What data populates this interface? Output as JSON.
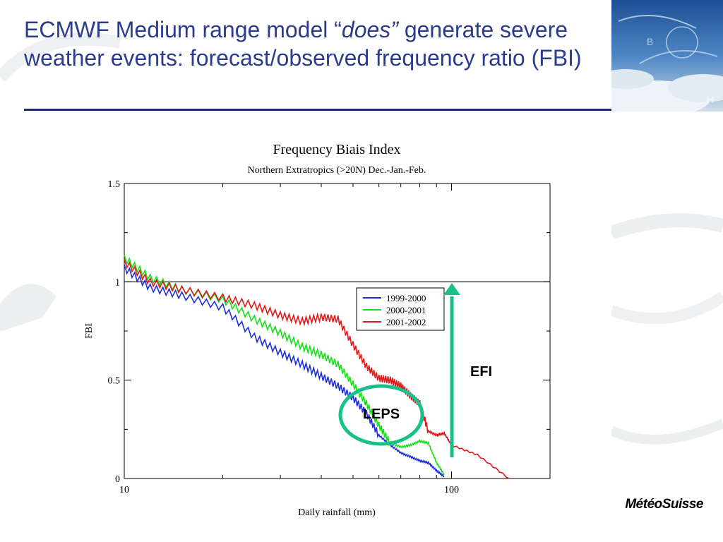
{
  "slide": {
    "title_part1": "ECMWF Medium range model “",
    "title_emph": "does”",
    "title_part2": " generate severe weather events: forecast/observed frequency ratio (FBI)",
    "logo_text": "MétéoSuisse"
  },
  "chart_data": {
    "type": "line",
    "title": "Frequency Biais Index",
    "subtitle": "Northern Extratropics (>20N) Dec.-Jan.-Feb.",
    "xlabel": "Daily rainfall (mm)",
    "ylabel": "FBI",
    "x_scale": "log",
    "xlim": [
      10,
      200
    ],
    "ylim": [
      0,
      1.5
    ],
    "x_ticks": [
      "10",
      "100"
    ],
    "y_ticks": [
      "0",
      "0.5",
      "1",
      "1.5"
    ],
    "reference_line": 1,
    "legend_position": "upper-right",
    "series": [
      {
        "name": "1999-2000",
        "color": "#1f2fd8",
        "x": [
          10,
          12,
          15,
          20,
          25,
          30,
          35,
          40,
          45,
          50,
          55,
          60,
          65,
          70,
          75,
          80,
          85,
          90,
          95
        ],
        "y": [
          1.07,
          0.97,
          0.93,
          0.87,
          0.72,
          0.64,
          0.58,
          0.52,
          0.47,
          0.41,
          0.33,
          0.22,
          0.17,
          0.13,
          0.11,
          0.09,
          0.08,
          0.04,
          0.01
        ]
      },
      {
        "name": "2000-2001",
        "color": "#18e01a",
        "x": [
          10,
          12,
          15,
          20,
          25,
          30,
          35,
          40,
          45,
          50,
          55,
          60,
          65,
          70,
          75,
          80,
          85,
          90,
          95
        ],
        "y": [
          1.12,
          1.02,
          0.96,
          0.91,
          0.81,
          0.74,
          0.67,
          0.63,
          0.58,
          0.48,
          0.38,
          0.27,
          0.18,
          0.16,
          0.17,
          0.19,
          0.18,
          0.08,
          0.02
        ]
      },
      {
        "name": "2001-2002",
        "color": "#e01a1a",
        "x": [
          10,
          12,
          15,
          20,
          25,
          30,
          35,
          40,
          45,
          50,
          55,
          60,
          65,
          70,
          75,
          80,
          85,
          90,
          95,
          100,
          120,
          150
        ],
        "y": [
          1.1,
          1.0,
          0.96,
          0.92,
          0.88,
          0.83,
          0.8,
          0.82,
          0.81,
          0.68,
          0.57,
          0.51,
          0.5,
          0.47,
          0.42,
          0.38,
          0.24,
          0.22,
          0.23,
          0.17,
          0.12,
          0.0
        ]
      }
    ],
    "annotations": [
      {
        "text": "LEPS",
        "kind": "ellipse"
      },
      {
        "text": "EFI",
        "kind": "arrow"
      }
    ],
    "annotation_color": "#19c08a"
  }
}
